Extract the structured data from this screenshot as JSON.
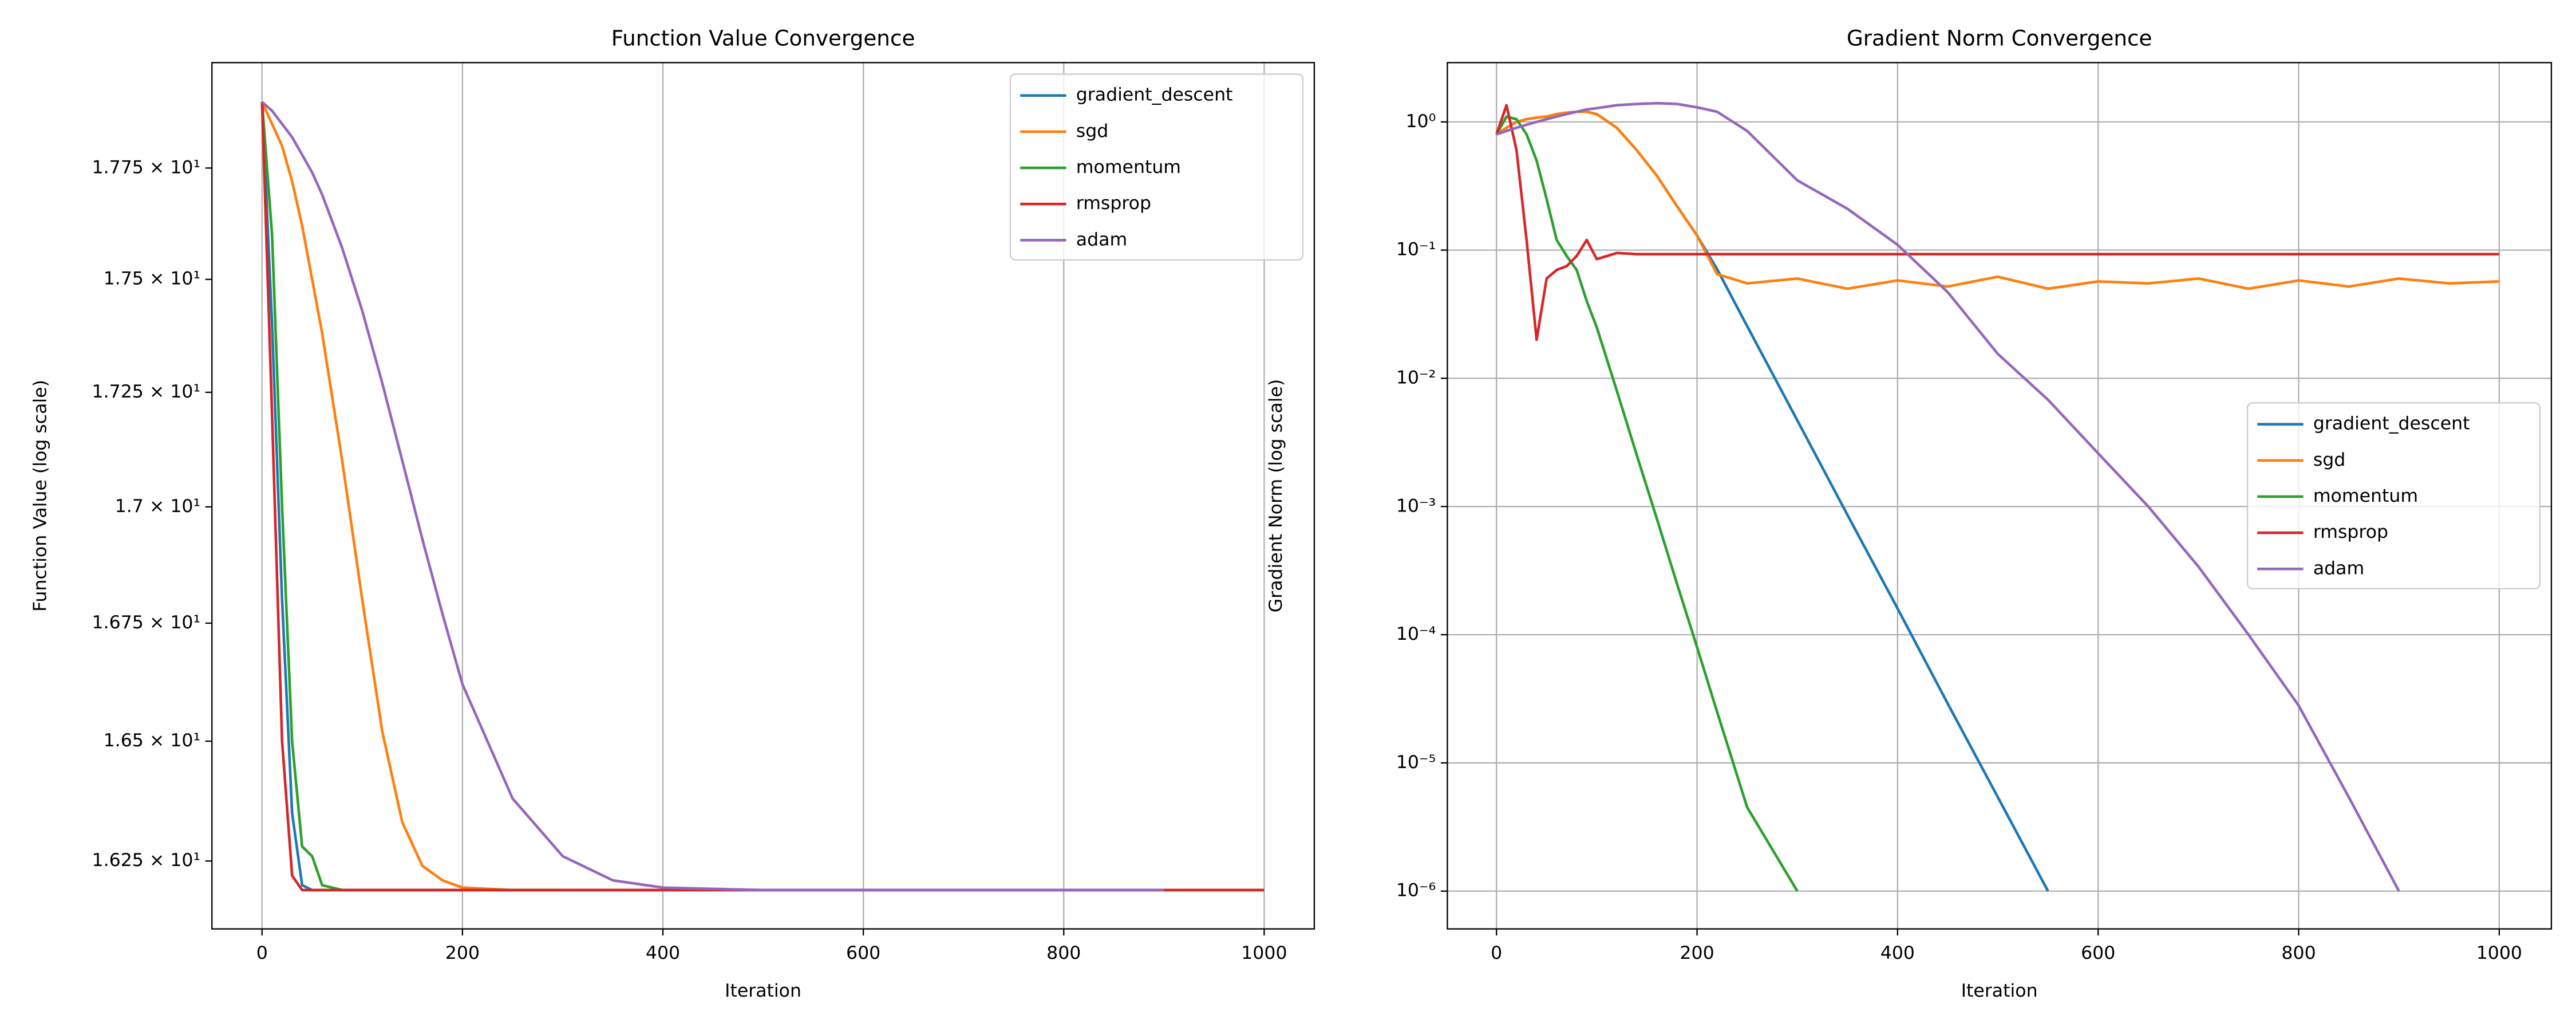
{
  "chart_data": [
    {
      "type": "line",
      "title": "Function Value Convergence",
      "xlabel": "Iteration",
      "ylabel": "Function Value (log scale)",
      "yscale": "log",
      "grid": "x",
      "legend": "upper right",
      "xlim": [
        -50,
        1050
      ],
      "xticks": [
        0,
        200,
        400,
        600,
        800,
        1000
      ],
      "ylim": [
        16.11,
        17.99
      ],
      "yticks": [
        {
          "value": 16.25,
          "label": "1.625 × 10¹"
        },
        {
          "value": 16.5,
          "label": "1.65 × 10¹"
        },
        {
          "value": 16.75,
          "label": "1.675 × 10¹"
        },
        {
          "value": 17.0,
          "label": "1.7 × 10¹"
        },
        {
          "value": 17.25,
          "label": "1.725 × 10¹"
        },
        {
          "value": 17.5,
          "label": "1.75 × 10¹"
        },
        {
          "value": 17.75,
          "label": "1.775 × 10¹"
        }
      ],
      "x": [
        0,
        10,
        20,
        30,
        40,
        50,
        60,
        80,
        100,
        120,
        140,
        160,
        180,
        200,
        250,
        300,
        350,
        400,
        500,
        600,
        700,
        800,
        900,
        1000
      ],
      "series": [
        {
          "name": "gradient_descent",
          "color": "#1f77b4",
          "values": [
            17.9,
            17.4,
            16.8,
            16.35,
            16.2,
            16.19,
            16.19,
            16.19,
            16.19,
            16.19,
            16.19,
            16.19,
            16.19,
            16.19,
            16.19,
            16.19,
            16.19,
            16.19,
            16.19,
            null,
            null,
            null,
            null,
            null
          ]
        },
        {
          "name": "sgd",
          "color": "#ff7f0e",
          "values": [
            17.9,
            17.85,
            17.8,
            17.72,
            17.62,
            17.5,
            17.38,
            17.1,
            16.8,
            16.52,
            16.33,
            16.24,
            16.21,
            16.195,
            16.19,
            16.19,
            16.19,
            16.19,
            16.19,
            16.19,
            16.19,
            16.19,
            16.19,
            16.19
          ]
        },
        {
          "name": "momentum",
          "color": "#2ca02c",
          "values": [
            17.9,
            17.6,
            17.0,
            16.5,
            16.28,
            16.26,
            16.2,
            16.19,
            16.19,
            16.19,
            16.19,
            16.19,
            16.19,
            16.19,
            16.19,
            16.19,
            null,
            null,
            null,
            null,
            null,
            null,
            null,
            null
          ]
        },
        {
          "name": "rmsprop",
          "color": "#d62728",
          "values": [
            17.9,
            17.2,
            16.5,
            16.22,
            16.19,
            16.19,
            16.19,
            16.19,
            16.19,
            16.19,
            16.19,
            16.19,
            16.19,
            16.19,
            16.19,
            16.19,
            16.19,
            16.19,
            16.19,
            16.19,
            16.19,
            16.19,
            16.19,
            16.19
          ]
        },
        {
          "name": "adam",
          "color": "#9467bd",
          "values": [
            17.9,
            17.88,
            17.85,
            17.82,
            17.78,
            17.74,
            17.69,
            17.57,
            17.43,
            17.27,
            17.1,
            16.93,
            16.77,
            16.62,
            16.38,
            16.26,
            16.21,
            16.195,
            16.19,
            16.19,
            16.19,
            16.19,
            16.19,
            null
          ]
        }
      ]
    },
    {
      "type": "line",
      "title": "Gradient Norm Convergence",
      "xlabel": "Iteration",
      "ylabel": "Gradient Norm (log scale)",
      "yscale": "log",
      "grid": "both",
      "legend": "center right",
      "xlim": [
        -49,
        1052
      ],
      "xticks": [
        0,
        200,
        400,
        600,
        800,
        1000
      ],
      "ylim": [
        5.07e-07,
        2.9
      ],
      "yticks": [
        {
          "value": 1e-06,
          "label": "10⁻⁶"
        },
        {
          "value": 1e-05,
          "label": "10⁻⁵"
        },
        {
          "value": 0.0001,
          "label": "10⁻⁴"
        },
        {
          "value": 0.001,
          "label": "10⁻³"
        },
        {
          "value": 0.01,
          "label": "10⁻²"
        },
        {
          "value": 0.1,
          "label": "10⁻¹"
        },
        {
          "value": 1,
          "label": "10⁰"
        }
      ],
      "x": [
        0,
        10,
        20,
        30,
        40,
        50,
        60,
        70,
        80,
        90,
        100,
        120,
        140,
        160,
        180,
        200,
        220,
        250,
        300,
        350,
        400,
        450,
        500,
        550,
        600,
        650,
        700,
        750,
        800,
        850,
        900,
        950,
        1000
      ],
      "series": [
        {
          "name": "gradient_descent",
          "color": "#1f77b4",
          "values": [
            0.8,
            0.9,
            1.0,
            1.05,
            1.08,
            1.1,
            1.15,
            1.18,
            1.2,
            1.2,
            1.15,
            0.9,
            0.6,
            0.38,
            0.22,
            0.13,
            0.071,
            0.0255,
            0.0047,
            0.00086,
            0.00016,
            2.9e-05,
            5.4e-06,
            1e-06,
            null,
            null,
            null,
            null,
            null,
            null,
            null,
            null,
            null
          ]
        },
        {
          "name": "sgd",
          "color": "#ff7f0e",
          "values": [
            0.8,
            0.9,
            1.0,
            1.05,
            1.08,
            1.1,
            1.15,
            1.18,
            1.2,
            1.2,
            1.15,
            0.9,
            0.6,
            0.38,
            0.22,
            0.13,
            0.065,
            0.055,
            0.06,
            0.05,
            0.058,
            0.052,
            0.062,
            0.05,
            0.057,
            0.055,
            0.06,
            0.05,
            0.058,
            0.052,
            0.06,
            0.055,
            0.057
          ]
        },
        {
          "name": "momentum",
          "color": "#2ca02c",
          "values": [
            0.8,
            1.1,
            1.05,
            0.8,
            0.5,
            0.25,
            0.12,
            0.09,
            0.07,
            0.04,
            0.025,
            0.008,
            0.0025,
            0.0008,
            0.00025,
            8e-05,
            2.5e-05,
            4.5e-06,
            1e-06,
            null,
            null,
            null,
            null,
            null,
            null,
            null,
            null,
            null,
            null,
            null,
            null,
            null,
            null
          ]
        },
        {
          "name": "rmsprop",
          "color": "#d62728",
          "values": [
            0.8,
            1.35,
            0.6,
            0.12,
            0.02,
            0.06,
            0.07,
            0.075,
            0.09,
            0.12,
            0.085,
            0.095,
            0.093,
            0.093,
            0.093,
            0.093,
            0.093,
            0.093,
            0.093,
            0.093,
            0.093,
            0.093,
            0.093,
            0.093,
            0.093,
            0.093,
            0.093,
            0.093,
            0.093,
            0.093,
            0.093,
            0.093,
            0.093
          ]
        },
        {
          "name": "adam",
          "color": "#9467bd",
          "values": [
            0.8,
            0.85,
            0.9,
            0.95,
            1.0,
            1.05,
            1.1,
            1.15,
            1.2,
            1.25,
            1.28,
            1.35,
            1.38,
            1.4,
            1.38,
            1.3,
            1.2,
            0.85,
            0.35,
            0.21,
            0.11,
            0.047,
            0.0155,
            0.0068,
            0.0026,
            0.001,
            0.00034,
            0.0001,
            2.8e-05,
            5.4e-06,
            1e-06,
            null,
            null
          ]
        }
      ]
    }
  ]
}
